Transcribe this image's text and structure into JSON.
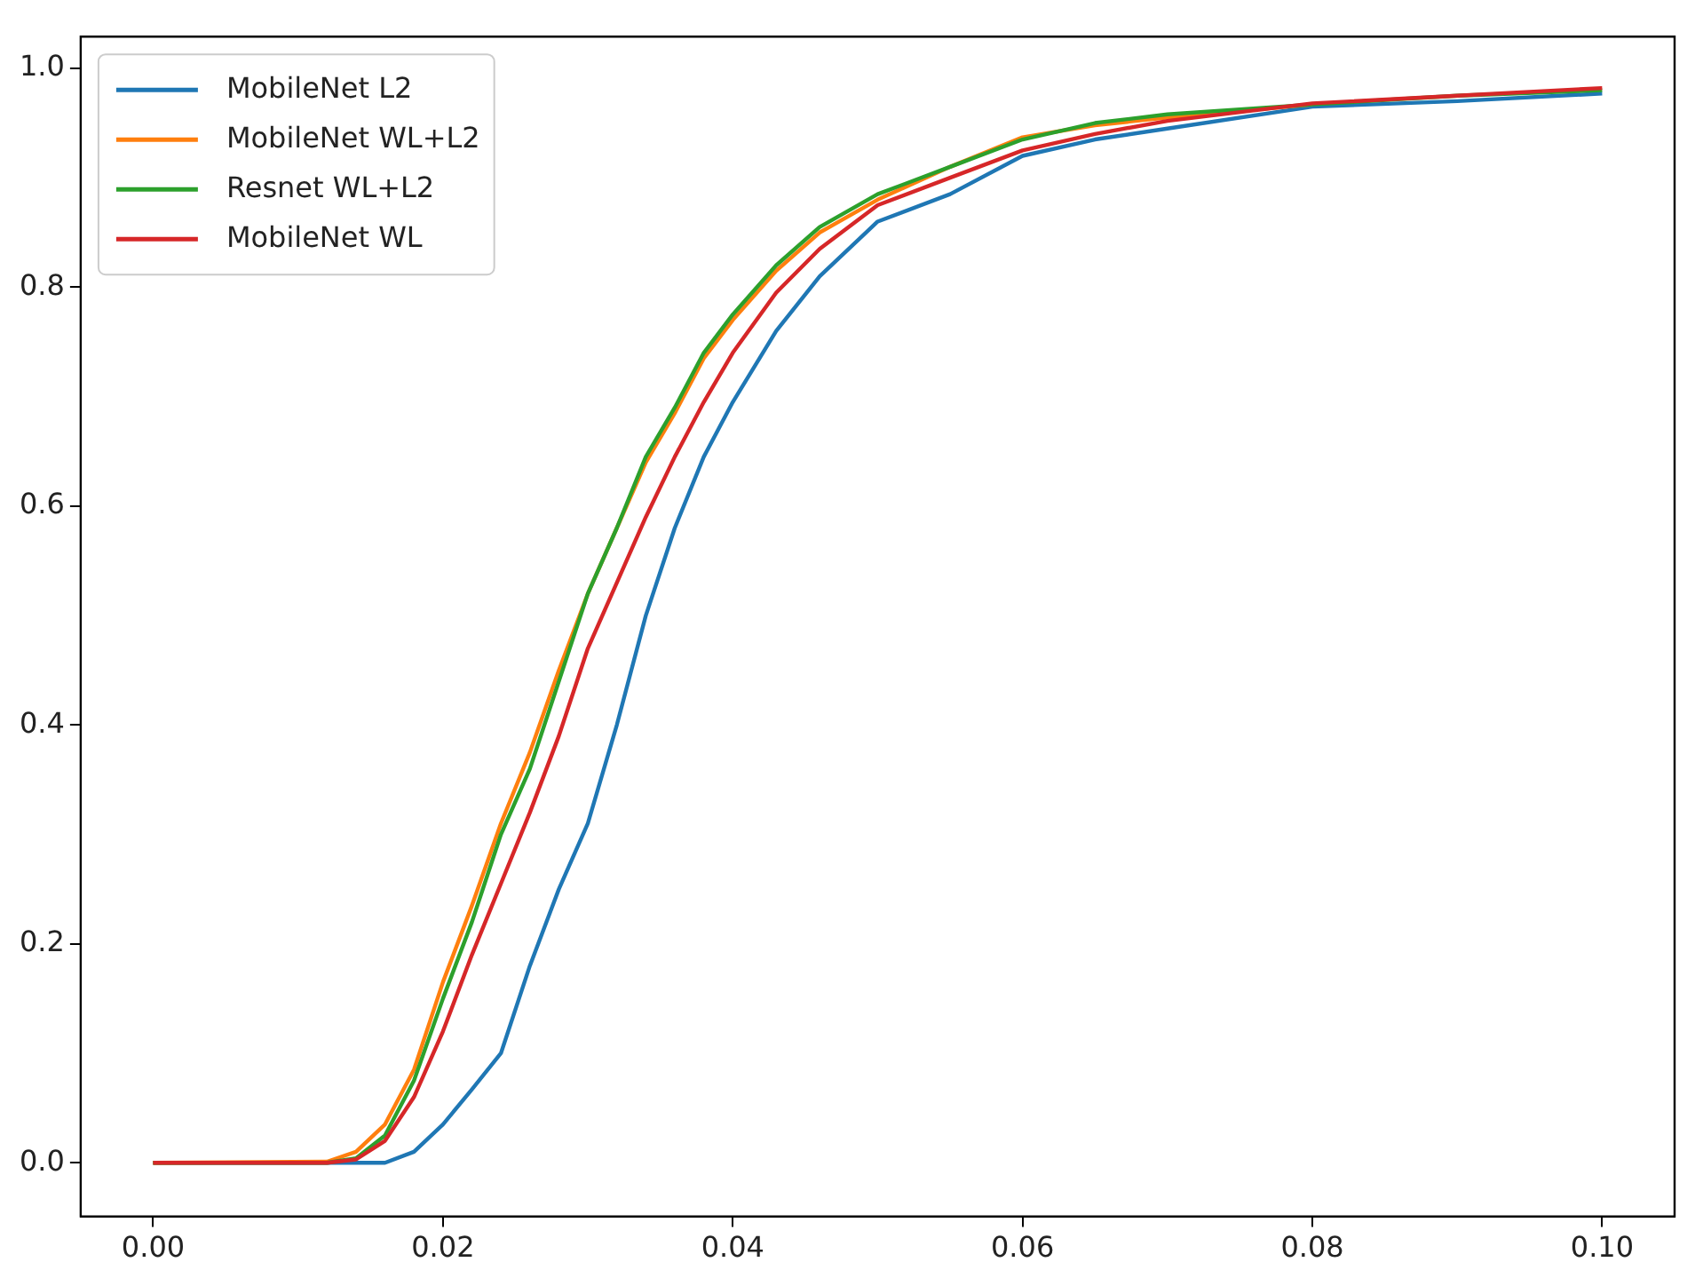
{
  "chart_data": {
    "type": "line",
    "x": [
      0,
      0.012,
      0.014,
      0.016,
      0.018,
      0.02,
      0.022,
      0.024,
      0.026,
      0.028,
      0.03,
      0.032,
      0.034,
      0.036,
      0.038,
      0.04,
      0.043,
      0.046,
      0.05,
      0.055,
      0.06,
      0.065,
      0.07,
      0.08,
      0.09,
      0.1
    ],
    "series": [
      {
        "name": "MobileNet L2",
        "color": "#1f77b4",
        "values": [
          0,
          0,
          0,
          0,
          0.01,
          0.035,
          0.067,
          0.1,
          0.18,
          0.25,
          0.31,
          0.4,
          0.5,
          0.58,
          0.645,
          0.695,
          0.76,
          0.81,
          0.86,
          0.885,
          0.92,
          0.935,
          0.945,
          0.965,
          0.97,
          0.977
        ]
      },
      {
        "name": "MobileNet WL+L2",
        "color": "#ff7f0e",
        "values": [
          0,
          0.001,
          0.01,
          0.035,
          0.085,
          0.165,
          0.235,
          0.31,
          0.375,
          0.45,
          0.52,
          0.58,
          0.64,
          0.685,
          0.735,
          0.77,
          0.815,
          0.85,
          0.88,
          0.91,
          0.937,
          0.948,
          0.955,
          0.967,
          null,
          null
        ]
      },
      {
        "name": "Resnet WL+L2",
        "color": "#2ca02c",
        "values": [
          0,
          0,
          0.004,
          0.025,
          0.075,
          0.15,
          0.22,
          0.3,
          0.36,
          0.44,
          0.52,
          0.58,
          0.645,
          0.69,
          0.74,
          0.775,
          0.82,
          0.855,
          0.885,
          0.91,
          0.935,
          0.95,
          0.958,
          0.967,
          0.975,
          0.98
        ]
      },
      {
        "name": "MobileNet WL",
        "color": "#d62728",
        "values": [
          0,
          0,
          0.003,
          0.02,
          0.06,
          0.12,
          0.19,
          0.255,
          0.32,
          0.39,
          0.47,
          0.53,
          0.59,
          0.645,
          0.695,
          0.74,
          0.795,
          0.835,
          0.875,
          0.9,
          0.925,
          0.94,
          0.952,
          0.968,
          0.975,
          0.982
        ]
      }
    ],
    "xlim": [
      -0.005,
      0.105
    ],
    "ylim": [
      -0.049,
      1.029
    ],
    "xticks": [
      {
        "value": 0,
        "label": "0.00"
      },
      {
        "value": 0.02,
        "label": "0.02"
      },
      {
        "value": 0.04,
        "label": "0.04"
      },
      {
        "value": 0.06,
        "label": "0.06"
      },
      {
        "value": 0.08,
        "label": "0.08"
      },
      {
        "value": 0.1,
        "label": "0.10"
      }
    ],
    "yticks": [
      {
        "value": 0,
        "label": "0.0"
      },
      {
        "value": 0.2,
        "label": "0.2"
      },
      {
        "value": 0.4,
        "label": "0.4"
      },
      {
        "value": 0.6,
        "label": "0.6"
      },
      {
        "value": 0.8,
        "label": "0.8"
      },
      {
        "value": 1,
        "label": "1.0"
      }
    ],
    "legend": "top left",
    "grid": false
  }
}
